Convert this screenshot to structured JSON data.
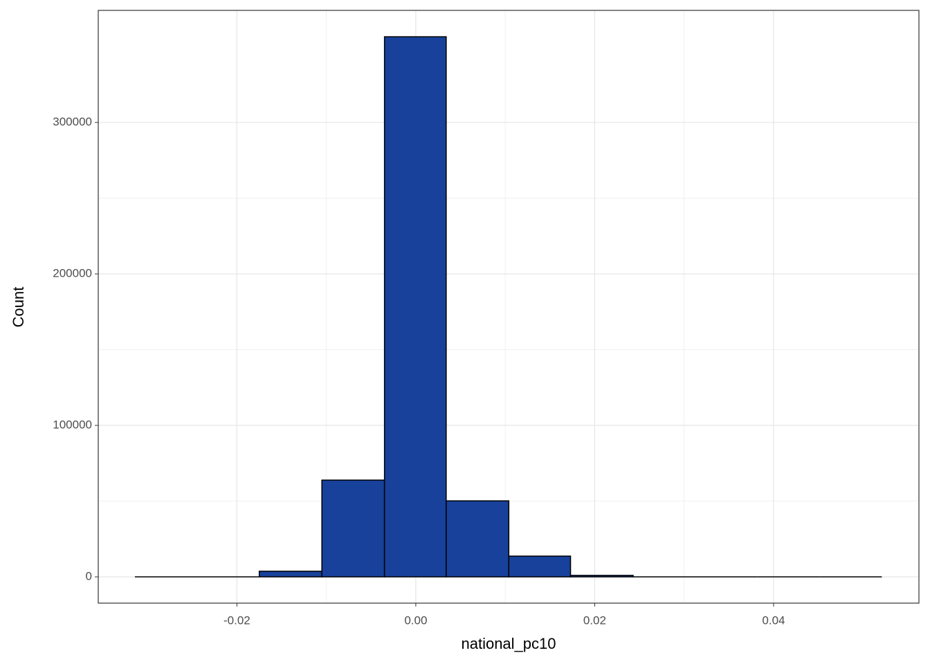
{
  "chart_data": {
    "type": "histogram",
    "x_label": "national_pc10",
    "y_label": "Count",
    "bins": [
      -0.0314,
      -0.0244,
      -0.0175,
      -0.0105,
      -0.0035,
      0.0034,
      0.0104,
      0.0173,
      0.0243,
      0.0313,
      0.0382,
      0.0452,
      0.0521
    ],
    "values": [
      0,
      0,
      3700,
      63900,
      356600,
      50200,
      13700,
      1000,
      0,
      0,
      0,
      0
    ],
    "color": "#17419a",
    "xlim": [
      -0.0355,
      0.05625
    ],
    "xticks": [
      -0.02,
      {
        "value": 0,
        "label": "0.00"
      },
      0.02,
      0.04
    ],
    "ylim": [
      -17350,
      374000
    ],
    "yticks": [
      0,
      100000,
      200000,
      300000
    ],
    "grid": true
  }
}
